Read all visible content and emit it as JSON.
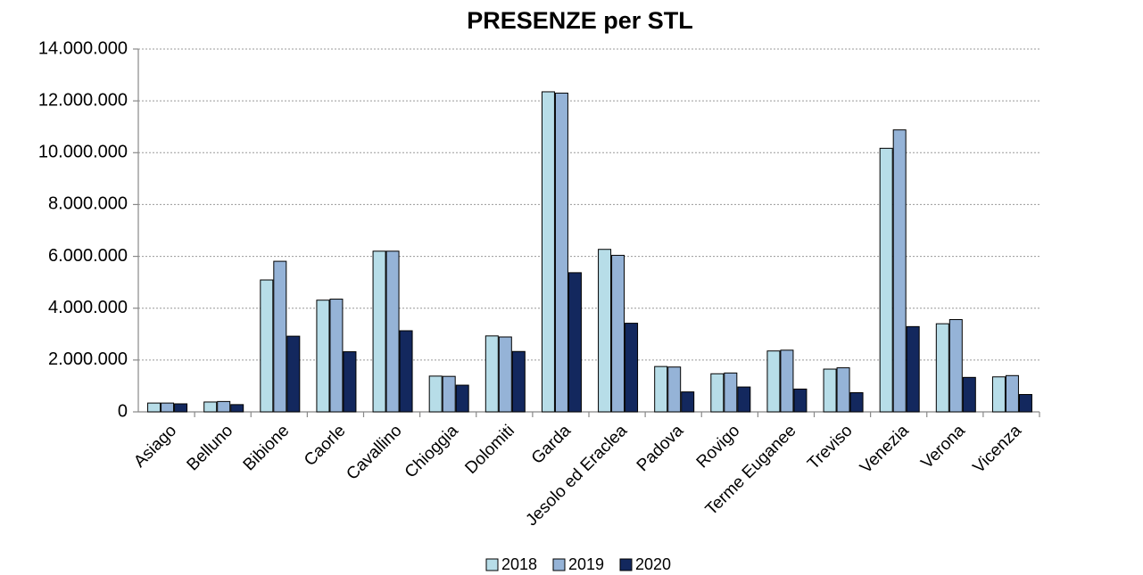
{
  "chart_data": {
    "type": "bar",
    "title": "PRESENZE per STL",
    "categories": [
      "Asiago",
      "Belluno",
      "Bibione",
      "Caorle",
      "Cavallino",
      "Chioggia",
      "Dolomiti",
      "Garda",
      "Jesolo ed Eraclea",
      "Padova",
      "Rovigo",
      "Terme Euganee",
      "Treviso",
      "Venezia",
      "Verona",
      "Vicenza"
    ],
    "series": [
      {
        "name": "2018",
        "color": "#b7dde8",
        "values": [
          340000,
          380000,
          5090000,
          4310000,
          6200000,
          1380000,
          2930000,
          12350000,
          6270000,
          1750000,
          1470000,
          2350000,
          1650000,
          10170000,
          3400000,
          1350000
        ]
      },
      {
        "name": "2019",
        "color": "#95b3d7",
        "values": [
          340000,
          400000,
          5810000,
          4350000,
          6200000,
          1370000,
          2890000,
          12300000,
          6040000,
          1730000,
          1500000,
          2380000,
          1700000,
          10880000,
          3560000,
          1400000
        ]
      },
      {
        "name": "2020",
        "color": "#13285e",
        "values": [
          310000,
          280000,
          2920000,
          2320000,
          3130000,
          1030000,
          2330000,
          5370000,
          3420000,
          770000,
          960000,
          880000,
          740000,
          3290000,
          1330000,
          670000
        ]
      }
    ],
    "ylim": [
      0,
      14000000
    ],
    "yticks": [
      0,
      {
        "value": 2000000,
        "label": "2.000.000"
      },
      {
        "value": 4000000,
        "label": "4.000.000"
      },
      {
        "value": 6000000,
        "label": "6.000.000"
      },
      {
        "value": 8000000,
        "label": "8.000.000"
      },
      {
        "value": 10000000,
        "label": "10.000.000"
      },
      {
        "value": 12000000,
        "label": "12.000.000"
      },
      {
        "value": 14000000,
        "label": "14.000.000"
      }
    ],
    "grid": true,
    "legend": "bottom"
  }
}
